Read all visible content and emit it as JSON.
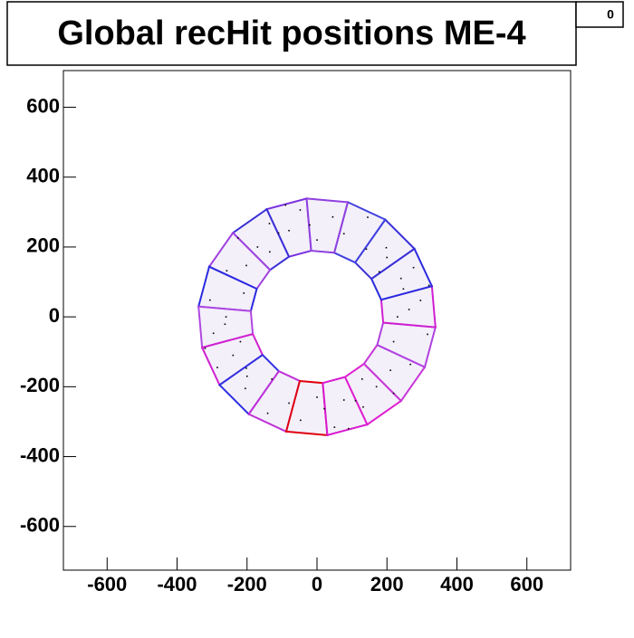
{
  "chart_data": {
    "type": "scatter",
    "title": "Global recHit positions ME-4",
    "entries_box": "0",
    "xlim": [
      -725,
      725
    ],
    "ylim": [
      -725,
      705
    ],
    "xticks": [
      -600,
      -400,
      -200,
      0,
      200,
      400,
      600
    ],
    "yticks": [
      -600,
      -400,
      -200,
      0,
      200,
      400,
      600
    ],
    "point_color": "#000000",
    "x": [
      230,
      296,
      247,
      276,
      178,
      198,
      141,
      145,
      77,
      45,
      0,
      -48,
      -80,
      -136,
      -135,
      -226,
      -202,
      -258,
      -209,
      -306,
      -260,
      -296,
      -219,
      -285,
      -202,
      -205,
      -129,
      -141,
      -80,
      -47,
      0,
      50,
      77,
      132,
      129,
      219,
      210,
      267,
      219,
      316,
      263,
      -21,
      -263,
      21,
      200,
      -170,
      -200,
      170,
      240,
      -110,
      -240,
      110,
      320,
      -90,
      -320,
      90
    ],
    "y": [
      0,
      47,
      80,
      141,
      129,
      198,
      194,
      285,
      238,
      286,
      220,
      306,
      247,
      267,
      186,
      226,
      147,
      132,
      68,
      48,
      0,
      -47,
      -71,
      -145,
      -147,
      -205,
      -178,
      -276,
      -247,
      -296,
      -230,
      -316,
      -238,
      -258,
      -178,
      -219,
      -153,
      -136,
      -71,
      -50,
      21,
      263,
      -21,
      -263,
      170,
      200,
      -170,
      -200,
      110,
      240,
      -110,
      -240,
      90,
      320,
      -90,
      -320
    ],
    "ring": {
      "inner_radius": 190,
      "outer_radius": 340,
      "first_edge_deg": 95,
      "fill": "#f3f0fa",
      "colors": [
        "#7a30e0",
        "#3a2fd6",
        "#a040e0",
        "#2a2ae0",
        "#b048e0",
        "#d020d0",
        "#3030e0",
        "#c030d8",
        "#e00010",
        "#d818d0",
        "#e020d0",
        "#c838d8",
        "#b040e0",
        "#d020d0",
        "#2a2ae0",
        "#3a2fd6",
        "#4040e0",
        "#9040e0"
      ]
    }
  }
}
